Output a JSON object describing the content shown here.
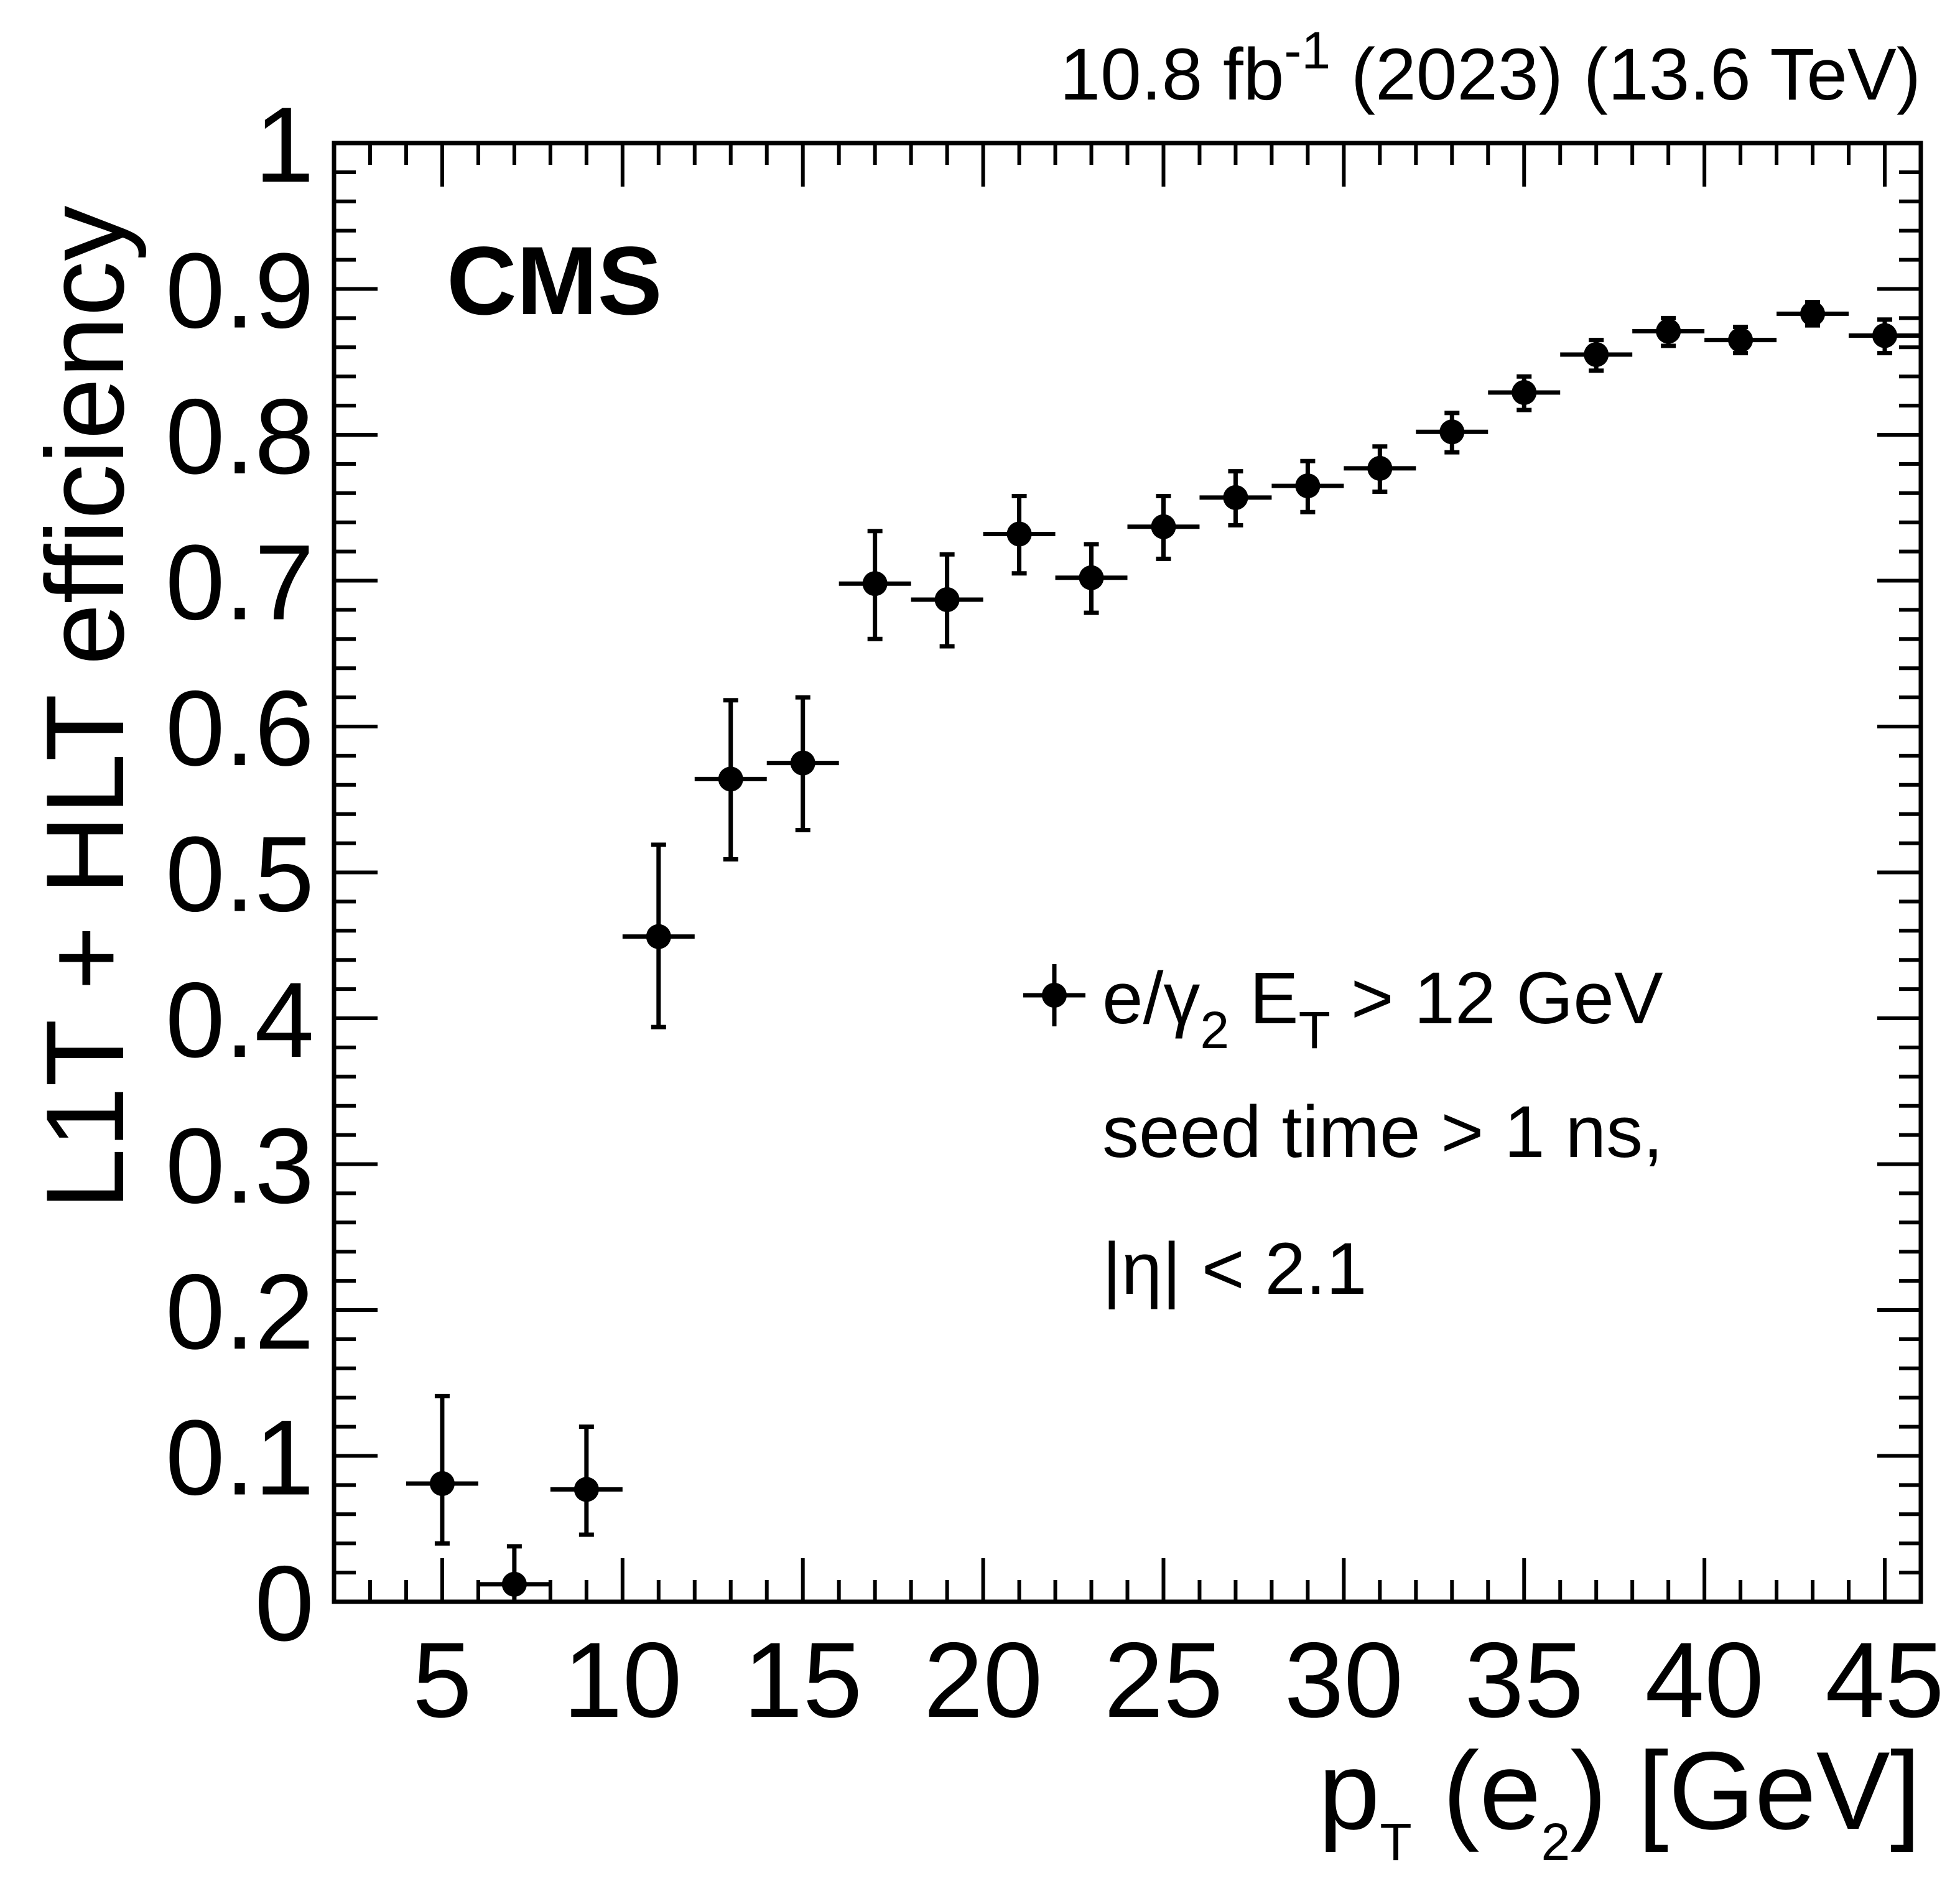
{
  "header": {
    "lumi_value": "10.8 fb",
    "lumi_exponent": "-1",
    "lumi_rest": " (2023) (13.6 TeV)"
  },
  "labels": {
    "experiment": "CMS",
    "ylabel": "L1T + HLT efficiency",
    "xlabel_p": "p",
    "xlabel_T": "T",
    "xlabel_mid": " (e",
    "xlabel_2": "2",
    "xlabel_end": ") [GeV]"
  },
  "legend": {
    "line1_a": "e/",
    "line1_gamma": "γ",
    "line1_sub2": "2",
    "line1_E": " E",
    "line1_subT": "T",
    "line1_rest": " > 12 GeV",
    "line2": "seed time > 1 ns,",
    "line3": "|η| < 2.1"
  },
  "chart_data": {
    "type": "scatter",
    "title": "",
    "xlabel": "pT (e2) [GeV]",
    "ylabel": "L1T + HLT efficiency",
    "xlim": [
      2,
      46
    ],
    "ylim": [
      0,
      1
    ],
    "x_ticks": [
      5,
      10,
      15,
      20,
      25,
      30,
      35,
      40,
      45
    ],
    "x_tick_labels": [
      "5",
      "10",
      "15",
      "20",
      "25",
      "30",
      "35",
      "40",
      "45"
    ],
    "y_ticks": [
      0,
      0.1,
      0.2,
      0.3,
      0.4,
      0.5,
      0.6,
      0.7,
      0.8,
      0.9,
      1
    ],
    "y_tick_labels": [
      "0",
      "0.1",
      "0.2",
      "0.3",
      "0.4",
      "0.5",
      "0.6",
      "0.7",
      "0.8",
      "0.9",
      "1"
    ],
    "legend_position": "right-middle",
    "series": [
      {
        "name": "e/γ2 ET > 12 GeV seed time > 1 ns, |η| < 2.1",
        "color": "#000000",
        "x": [
          5,
          7,
          9,
          11,
          13,
          15,
          17,
          19,
          21,
          23,
          25,
          27,
          29,
          31,
          33,
          35,
          37,
          39,
          41,
          43,
          45
        ],
        "xerr": [
          1,
          1,
          1,
          1,
          1,
          1,
          1,
          1,
          1,
          1,
          1,
          1,
          1,
          1,
          1,
          1,
          1,
          1,
          1,
          1,
          1
        ],
        "y": [
          0.081,
          0.012,
          0.077,
          0.456,
          0.564,
          0.575,
          0.698,
          0.687,
          0.732,
          0.702,
          0.737,
          0.757,
          0.765,
          0.777,
          0.802,
          0.829,
          0.855,
          0.871,
          0.865,
          0.883,
          0.868
        ],
        "yerr_low": [
          0.041,
          0.012,
          0.031,
          0.062,
          0.055,
          0.046,
          0.038,
          0.032,
          0.027,
          0.024,
          0.022,
          0.019,
          0.018,
          0.016,
          0.014,
          0.012,
          0.011,
          0.01,
          0.009,
          0.008,
          0.012
        ],
        "yerr_high": [
          0.06,
          0.026,
          0.043,
          0.063,
          0.054,
          0.045,
          0.036,
          0.031,
          0.026,
          0.023,
          0.021,
          0.018,
          0.017,
          0.015,
          0.013,
          0.011,
          0.01,
          0.009,
          0.009,
          0.008,
          0.011
        ]
      }
    ]
  }
}
